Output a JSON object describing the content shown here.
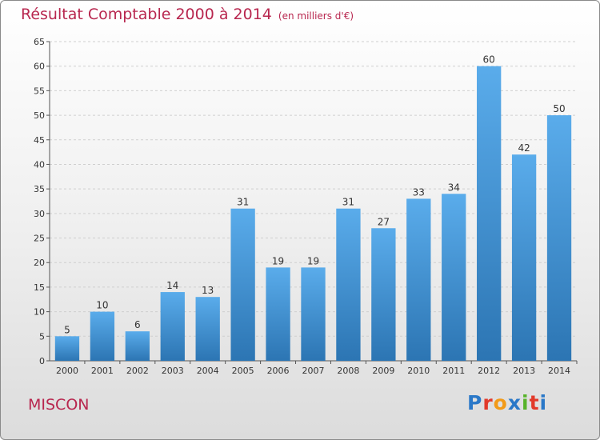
{
  "title": "Résultat Comptable 2000 à 2014",
  "subtitle": "(en milliers d'€)",
  "commune": "MISCON",
  "logo": {
    "text": "Proxiti",
    "colors": [
      "#2a78c8",
      "#e23a2a",
      "#f29a18",
      "#2a78c8",
      "#58b32a",
      "#e23a2a",
      "#2a78c8"
    ]
  },
  "colors": {
    "title": "#b8274f",
    "bar_top": "#5aaceb",
    "bar_bottom": "#2c75b3",
    "axis": "#555555"
  },
  "chart_data": {
    "type": "bar",
    "categories": [
      "2000",
      "2001",
      "2002",
      "2003",
      "2004",
      "2005",
      "2006",
      "2007",
      "2008",
      "2009",
      "2010",
      "2011",
      "2012",
      "2013",
      "2014"
    ],
    "values": [
      5,
      10,
      6,
      14,
      13,
      31,
      19,
      19,
      31,
      27,
      33,
      34,
      60,
      42,
      50
    ],
    "title": "Résultat Comptable 2000 à 2014",
    "xlabel": "",
    "ylabel": "",
    "ylim": [
      0,
      65
    ],
    "yticks": [
      0,
      5,
      10,
      15,
      20,
      25,
      30,
      35,
      40,
      45,
      50,
      55,
      60,
      65
    ],
    "grid": true,
    "data_labels": true
  }
}
